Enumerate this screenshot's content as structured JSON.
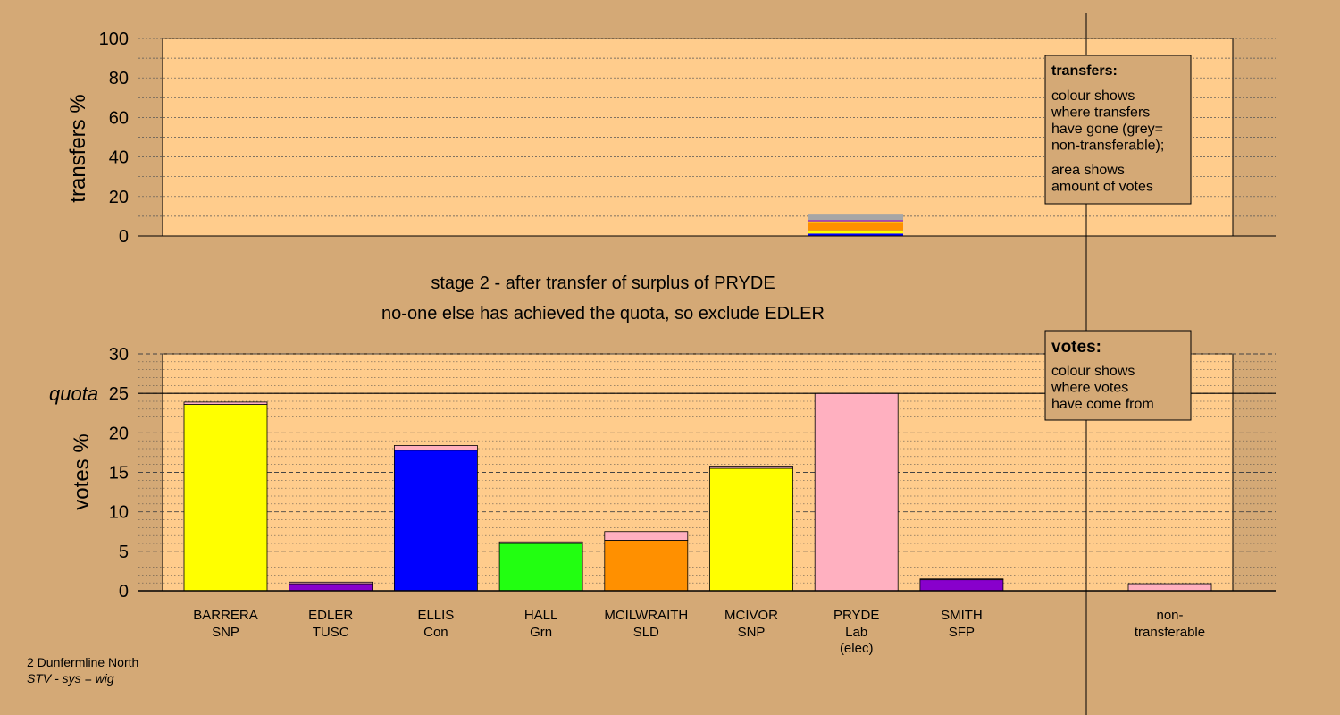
{
  "colors": {
    "background": "#d4a976",
    "panel": "#ffcc8c",
    "grey": "#a6a6a6",
    "SNP": "#ffff00",
    "TUSC": "#8800cc",
    "Con": "#0000ff",
    "Grn": "#22ff11",
    "SLD": "#ff9000",
    "Lab": "#ffb0c0",
    "SFP": "#8800cc"
  },
  "stage_title": "stage 2 - after transfer of surplus of PRYDE",
  "stage_subtitle": "no-one else has achieved the quota, so exclude EDLER",
  "footer": {
    "line1": "2 Dunfermline North",
    "line2": "STV - sys = wig"
  },
  "legend_transfers": {
    "title": "transfers:",
    "lines1": [
      "colour shows",
      "where transfers",
      "have gone (grey=",
      "non-transferable);"
    ],
    "lines2": [
      "area shows",
      "amount of votes"
    ]
  },
  "legend_votes": {
    "title": "votes:",
    "lines": [
      "colour shows",
      "where votes",
      "have come from"
    ]
  },
  "chart_data": [
    {
      "type": "bar",
      "ylabel": "transfers %",
      "ylim": [
        0,
        100
      ],
      "yticks": [
        0,
        20,
        40,
        60,
        80,
        100
      ],
      "transfer_source": "PRYDE",
      "stack": [
        {
          "color_key": "Con",
          "value": 1.2
        },
        {
          "color_key": "SNP",
          "value": 1.2
        },
        {
          "color_key": "TUSC",
          "value": 0.2
        },
        {
          "color_key": "Grn",
          "value": 0.2
        },
        {
          "color_key": "SLD",
          "value": 4.3
        },
        {
          "color_key": "SNP",
          "value": 0.3
        },
        {
          "color_key": "TUSC",
          "value": 0.6
        },
        {
          "color_key": "grey",
          "value": 2.8
        }
      ]
    },
    {
      "type": "bar",
      "ylabel": "votes %",
      "ylim": [
        0,
        30
      ],
      "yticks": [
        0,
        5,
        10,
        15,
        20,
        25,
        30
      ],
      "quota": 25,
      "quota_label": "quota",
      "candidates": [
        {
          "name": "BARRERA",
          "party": "SNP",
          "color_key": "SNP",
          "first": 23.6,
          "transfer": 0.3
        },
        {
          "name": "EDLER",
          "party": "TUSC",
          "color_key": "TUSC",
          "first": 0.9,
          "transfer": 0.2
        },
        {
          "name": "ELLIS",
          "party": "Con",
          "color_key": "Con",
          "first": 17.8,
          "transfer": 0.6
        },
        {
          "name": "HALL",
          "party": "Grn",
          "color_key": "Grn",
          "first": 6.0,
          "transfer": 0.2
        },
        {
          "name": "MCILWRAITH",
          "party": "SLD",
          "color_key": "SLD",
          "first": 6.4,
          "transfer": 1.1
        },
        {
          "name": "MCIVOR",
          "party": "SNP",
          "color_key": "SNP",
          "first": 15.5,
          "transfer": 0.3
        },
        {
          "name": "PRYDE",
          "party": "Lab",
          "note": "(elec)",
          "color_key": "Lab",
          "first": 25.0,
          "transfer": 0
        },
        {
          "name": "SMITH",
          "party": "SFP",
          "color_key": "SFP",
          "first": 1.4,
          "transfer": 0.1
        }
      ],
      "nontransferable": {
        "line1": "non-",
        "line2": "transferable",
        "value": 0.9,
        "color_key": "Lab"
      }
    }
  ]
}
